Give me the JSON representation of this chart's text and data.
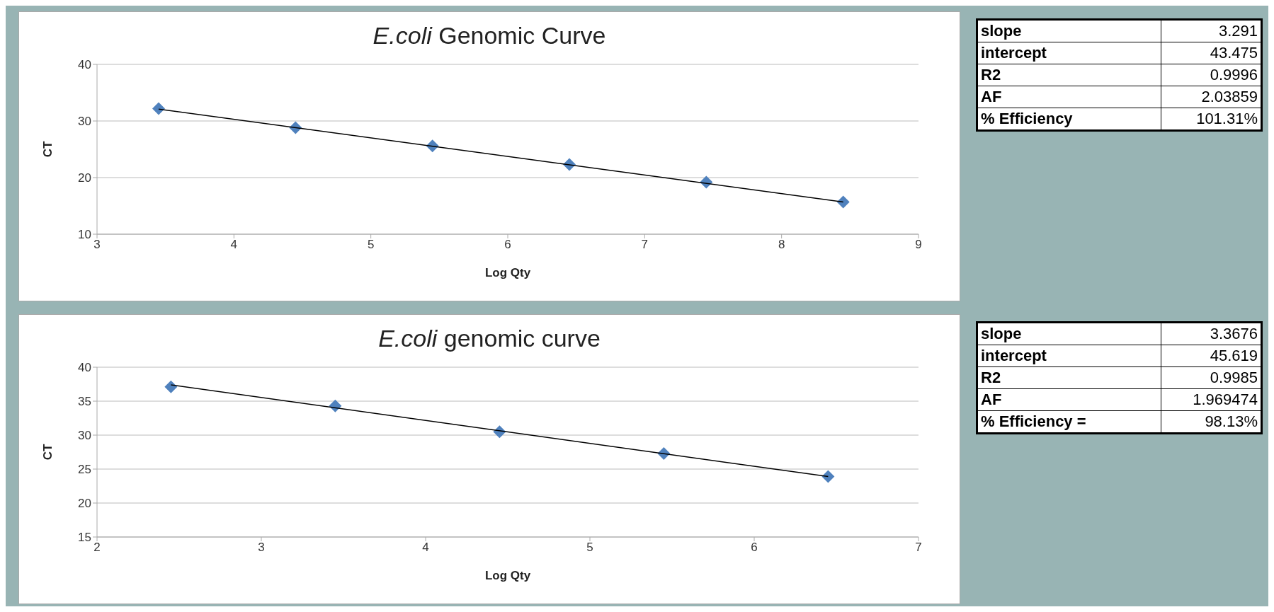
{
  "chart_data": [
    {
      "type": "scatter",
      "title": "E.coli Genomic Curve",
      "xlabel": "Log Qty",
      "ylabel": "CT",
      "grid": "y",
      "legend": false,
      "x": [
        3.45,
        4.45,
        5.45,
        6.45,
        7.45,
        8.45
      ],
      "xlim": [
        3,
        9
      ],
      "xticks": [
        3,
        4,
        5,
        6,
        7,
        8,
        9
      ],
      "ylim": [
        10,
        40
      ],
      "yticks": [
        10,
        20,
        30,
        40
      ],
      "series": [
        {
          "color": "#4f81bd",
          "marker": "diamond",
          "values": [
            32.2,
            28.8,
            25.6,
            22.3,
            19.2,
            15.7
          ]
        },
        {
          "type": "line",
          "marker": "none",
          "color": "#000000",
          "x": [
            3.45,
            8.45
          ],
          "values": [
            32.1,
            15.7
          ]
        }
      ]
    },
    {
      "type": "other",
      "annotations": [
        "slope",
        "3.291",
        "intercept",
        "43.475",
        "R2",
        "0.9996",
        "AF",
        "2.03859",
        "% Efficiency",
        "101.31%"
      ]
    },
    {
      "type": "scatter",
      "title": "E.coli genomic curve",
      "xlabel": "Log Qty",
      "ylabel": "CT",
      "grid": "y",
      "legend": false,
      "x": [
        2.45,
        3.45,
        4.45,
        5.45,
        6.45
      ],
      "xlim": [
        2,
        7
      ],
      "xticks": [
        2,
        3,
        4,
        5,
        6,
        7
      ],
      "ylim": [
        15,
        40
      ],
      "yticks": [
        15,
        20,
        25,
        30,
        35,
        40
      ],
      "series": [
        {
          "color": "#4f81bd",
          "marker": "diamond",
          "values": [
            37.1,
            34.3,
            30.5,
            27.3,
            23.9
          ]
        },
        {
          "type": "line",
          "marker": "none",
          "color": "#000000",
          "x": [
            2.45,
            6.45
          ],
          "values": [
            37.4,
            23.9
          ]
        }
      ]
    },
    {
      "type": "other",
      "annotations": [
        "slope",
        "3.3676",
        "intercept",
        "45.619",
        "R2",
        "0.9985",
        "AF",
        "1.969474",
        "% Efficiency =",
        "98.13%"
      ]
    }
  ]
}
